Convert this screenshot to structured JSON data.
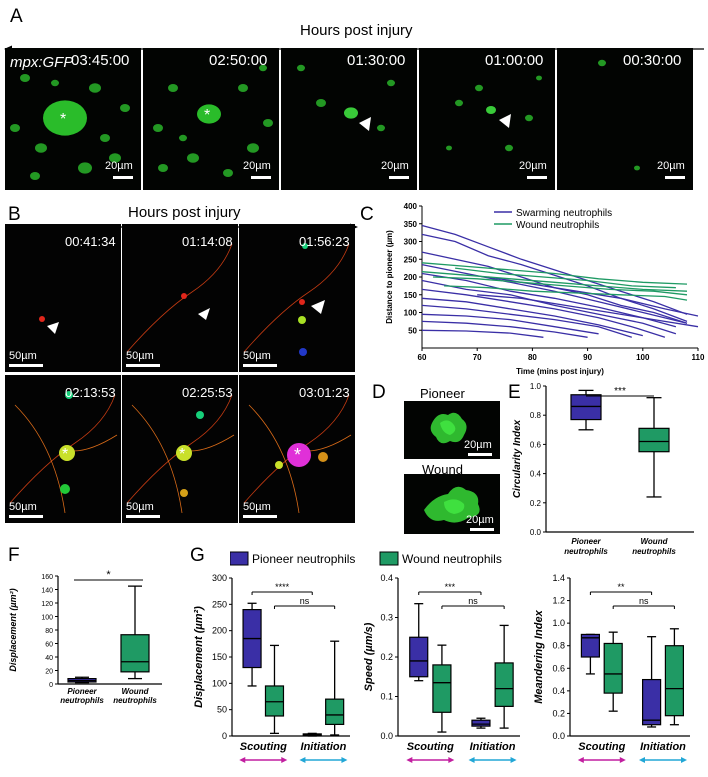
{
  "panels": {
    "A": {
      "label": "A",
      "axis_title": "Hours post injury",
      "marker": "mpx:GFP",
      "frames": [
        {
          "time": "03:45:00",
          "scalebar": "20µm"
        },
        {
          "time": "02:50:00",
          "scalebar": "20µm"
        },
        {
          "time": "01:30:00",
          "scalebar": "20µm"
        },
        {
          "time": "01:00:00",
          "scalebar": "20µm"
        },
        {
          "time": "00:30:00",
          "scalebar": "20µm"
        }
      ],
      "marker_color": "#39e03a"
    },
    "B": {
      "label": "B",
      "axis_title": "Hours post injury",
      "frames": [
        {
          "time": "00:41:34",
          "scalebar": "50µm"
        },
        {
          "time": "01:14:08",
          "scalebar": "50µm"
        },
        {
          "time": "01:56:23",
          "scalebar": "50µm"
        },
        {
          "time": "02:13:53",
          "scalebar": "50µm"
        },
        {
          "time": "02:25:53",
          "scalebar": "50µm"
        },
        {
          "time": "03:01:23",
          "scalebar": "50µm"
        }
      ]
    },
    "D": {
      "label": "D",
      "images": [
        {
          "title": "Pioneer",
          "scalebar": "20µm"
        },
        {
          "title": "Wound",
          "scalebar": "20µm"
        }
      ]
    },
    "F": {
      "label": "F"
    },
    "G": {
      "label": "G"
    }
  },
  "colors": {
    "pioneer": "#3a2fa6",
    "wound": "#1f9a64",
    "scouting_arrow": "#c21fa0",
    "initiation_arrow": "#22a7d6"
  },
  "chart_data": [
    {
      "id": "C",
      "label": "C",
      "type": "line",
      "xlabel": "Time (mins post injury)",
      "ylabel": "Distance to pioneer (µm)",
      "xlim": [
        60,
        110
      ],
      "ylim": [
        0,
        400
      ],
      "xticks": [
        60,
        70,
        80,
        90,
        100,
        110
      ],
      "yticks": [
        50,
        100,
        150,
        200,
        250,
        300,
        350,
        400
      ],
      "legend": [
        "Swarming neutrophils",
        "Wound neutrophils"
      ],
      "series": [
        {
          "name": "Swarming neutrophils",
          "color": "#3a2fa6",
          "lines": [
            {
              "x": [
                60,
                66,
                72,
                78,
                84,
                90,
                96,
                102,
                108
              ],
              "y": [
                345,
                320,
                285,
                250,
                220,
                190,
                160,
                130,
                95
              ]
            },
            {
              "x": [
                60,
                66,
                72,
                78,
                84,
                90,
                96,
                102,
                108
              ],
              "y": [
                320,
                300,
                260,
                235,
                205,
                175,
                140,
                110,
                75
              ]
            },
            {
              "x": [
                60,
                66,
                72,
                78,
                84,
                90,
                96,
                102,
                108
              ],
              "y": [
                270,
                250,
                230,
                200,
                170,
                150,
                120,
                100,
                70
              ]
            },
            {
              "x": [
                60,
                68,
                76,
                84,
                92,
                100,
                108
              ],
              "y": [
                235,
                210,
                185,
                160,
                130,
                100,
                70
              ]
            },
            {
              "x": [
                60,
                68,
                76,
                84,
                92,
                100,
                106
              ],
              "y": [
                210,
                190,
                160,
                140,
                115,
                85,
                60
              ]
            },
            {
              "x": [
                60,
                68,
                76,
                84,
                92,
                100,
                106
              ],
              "y": [
                190,
                165,
                150,
                120,
                95,
                70,
                40
              ]
            },
            {
              "x": [
                60,
                68,
                76,
                84,
                92,
                98,
                104
              ],
              "y": [
                165,
                150,
                130,
                110,
                85,
                60,
                30
              ]
            },
            {
              "x": [
                60,
                68,
                76,
                84,
                92,
                100
              ],
              "y": [
                140,
                130,
                110,
                90,
                65,
                35
              ]
            },
            {
              "x": [
                60,
                68,
                76,
                84,
                92,
                98
              ],
              "y": [
                120,
                110,
                95,
                80,
                60,
                30
              ]
            },
            {
              "x": [
                60,
                68,
                76,
                84,
                92
              ],
              "y": [
                95,
                90,
                80,
                60,
                40
              ]
            },
            {
              "x": [
                60,
                68,
                76,
                84,
                90
              ],
              "y": [
                75,
                70,
                60,
                45,
                30
              ]
            },
            {
              "x": [
                60,
                68,
                76,
                82
              ],
              "y": [
                50,
                48,
                42,
                30
              ]
            },
            {
              "x": [
                70,
                78,
                86,
                94,
                102,
                110
              ],
              "y": [
                150,
                140,
                120,
                100,
                80,
                60
              ]
            },
            {
              "x": [
                72,
                80,
                88,
                96,
                104,
                110
              ],
              "y": [
                200,
                180,
                160,
                140,
                110,
                90
              ]
            }
          ]
        },
        {
          "name": "Wound neutrophils",
          "color": "#1f9a64",
          "lines": [
            {
              "x": [
                60,
                68,
                76,
                84,
                92,
                100,
                108
              ],
              "y": [
                240,
                230,
                220,
                210,
                195,
                185,
                180
              ]
            },
            {
              "x": [
                60,
                68,
                76,
                84,
                92,
                100,
                108
              ],
              "y": [
                215,
                205,
                195,
                185,
                175,
                165,
                160
              ]
            },
            {
              "x": [
                62,
                70,
                78,
                86,
                94,
                102,
                108
              ],
              "y": [
                200,
                195,
                185,
                175,
                165,
                160,
                150
              ]
            },
            {
              "x": [
                64,
                72,
                80,
                88,
                96,
                104,
                108
              ],
              "y": [
                175,
                170,
                160,
                155,
                150,
                145,
                135
              ]
            },
            {
              "x": [
                66,
                74,
                82,
                90,
                98,
                106
              ],
              "y": [
                225,
                210,
                200,
                190,
                175,
                170
              ]
            }
          ]
        }
      ]
    },
    {
      "id": "E",
      "label": "E",
      "type": "box",
      "ylabel": "Circularity Index",
      "ylim": [
        0,
        1
      ],
      "yticks": [
        0.0,
        0.2,
        0.4,
        0.6,
        0.8,
        1.0
      ],
      "categories": [
        "Pioneer neutrophils",
        "Wound neutrophils"
      ],
      "boxes": [
        {
          "min": 0.7,
          "q1": 0.77,
          "median": 0.86,
          "q3": 0.94,
          "max": 0.97
        },
        {
          "min": 0.24,
          "q1": 0.55,
          "median": 0.62,
          "q3": 0.71,
          "max": 0.92
        }
      ],
      "significance": [
        {
          "from": 0,
          "to": 1,
          "label": "***"
        }
      ]
    },
    {
      "id": "F",
      "label": "F",
      "type": "box",
      "ylabel": "Displacement (µm²)",
      "ylim": [
        0,
        160
      ],
      "yticks": [
        0,
        20,
        40,
        60,
        80,
        100,
        120,
        140,
        160
      ],
      "categories": [
        "Pioneer neutrophils",
        "Wound neutrophils"
      ],
      "boxes": [
        {
          "min": 2,
          "q1": 3,
          "median": 5,
          "q3": 8,
          "max": 10
        },
        {
          "min": 8,
          "q1": 18,
          "median": 33,
          "q3": 73,
          "max": 145
        }
      ],
      "significance": [
        {
          "from": 0,
          "to": 1,
          "label": "*"
        }
      ]
    },
    {
      "id": "G1",
      "type": "box",
      "legend": [
        "Pioneer neutrophils",
        "Wound neutrophils"
      ],
      "ylabel": "Displacement (µm²)",
      "ylim": [
        0,
        300
      ],
      "yticks": [
        0,
        50,
        100,
        150,
        200,
        250,
        300
      ],
      "groups": [
        "Scouting",
        "Initiation"
      ],
      "boxes": [
        {
          "group": 0,
          "series": 0,
          "min": 95,
          "q1": 130,
          "median": 185,
          "q3": 240,
          "max": 252
        },
        {
          "group": 0,
          "series": 1,
          "min": 5,
          "q1": 38,
          "median": 65,
          "q3": 95,
          "max": 172
        },
        {
          "group": 1,
          "series": 0,
          "min": 0,
          "q1": 1,
          "median": 2,
          "q3": 4,
          "max": 5
        },
        {
          "group": 1,
          "series": 1,
          "min": 2,
          "q1": 22,
          "median": 40,
          "q3": 70,
          "max": 180
        }
      ],
      "significance": [
        {
          "label": "****",
          "a": [
            0,
            0
          ],
          "b": [
            1,
            0
          ]
        },
        {
          "label": "ns",
          "a": [
            0,
            1
          ],
          "b": [
            1,
            1
          ]
        }
      ]
    },
    {
      "id": "G2",
      "type": "box",
      "ylabel": "Speed (µm/s)",
      "ylim": [
        0,
        0.4
      ],
      "yticks": [
        0.0,
        0.1,
        0.2,
        0.3,
        0.4
      ],
      "groups": [
        "Scouting",
        "Initiation"
      ],
      "boxes": [
        {
          "group": 0,
          "series": 0,
          "min": 0.14,
          "q1": 0.15,
          "median": 0.19,
          "q3": 0.25,
          "max": 0.335
        },
        {
          "group": 0,
          "series": 1,
          "min": 0.01,
          "q1": 0.06,
          "median": 0.135,
          "q3": 0.18,
          "max": 0.23
        },
        {
          "group": 1,
          "series": 0,
          "min": 0.02,
          "q1": 0.025,
          "median": 0.03,
          "q3": 0.04,
          "max": 0.045
        },
        {
          "group": 1,
          "series": 1,
          "min": 0.02,
          "q1": 0.075,
          "median": 0.12,
          "q3": 0.185,
          "max": 0.28
        }
      ],
      "significance": [
        {
          "label": "***",
          "a": [
            0,
            0
          ],
          "b": [
            1,
            0
          ]
        },
        {
          "label": "ns",
          "a": [
            0,
            1
          ],
          "b": [
            1,
            1
          ]
        }
      ]
    },
    {
      "id": "G3",
      "type": "box",
      "ylabel": "Meandering Index",
      "ylim": [
        0,
        1.4
      ],
      "yticks": [
        0.0,
        0.2,
        0.4,
        0.6,
        0.8,
        1.0,
        1.2,
        1.4
      ],
      "groups": [
        "Scouting",
        "Initiation"
      ],
      "boxes": [
        {
          "group": 0,
          "series": 0,
          "min": 0.55,
          "q1": 0.7,
          "median": 0.87,
          "q3": 0.9,
          "max": 0.9
        },
        {
          "group": 0,
          "series": 1,
          "min": 0.22,
          "q1": 0.38,
          "median": 0.55,
          "q3": 0.82,
          "max": 0.92
        },
        {
          "group": 1,
          "series": 0,
          "min": 0.08,
          "q1": 0.1,
          "median": 0.14,
          "q3": 0.5,
          "max": 0.88
        },
        {
          "group": 1,
          "series": 1,
          "min": 0.1,
          "q1": 0.18,
          "median": 0.42,
          "q3": 0.8,
          "max": 0.95
        }
      ],
      "significance": [
        {
          "label": "**",
          "a": [
            0,
            0
          ],
          "b": [
            1,
            0
          ]
        },
        {
          "label": "ns",
          "a": [
            0,
            1
          ],
          "b": [
            1,
            1
          ]
        }
      ]
    }
  ]
}
